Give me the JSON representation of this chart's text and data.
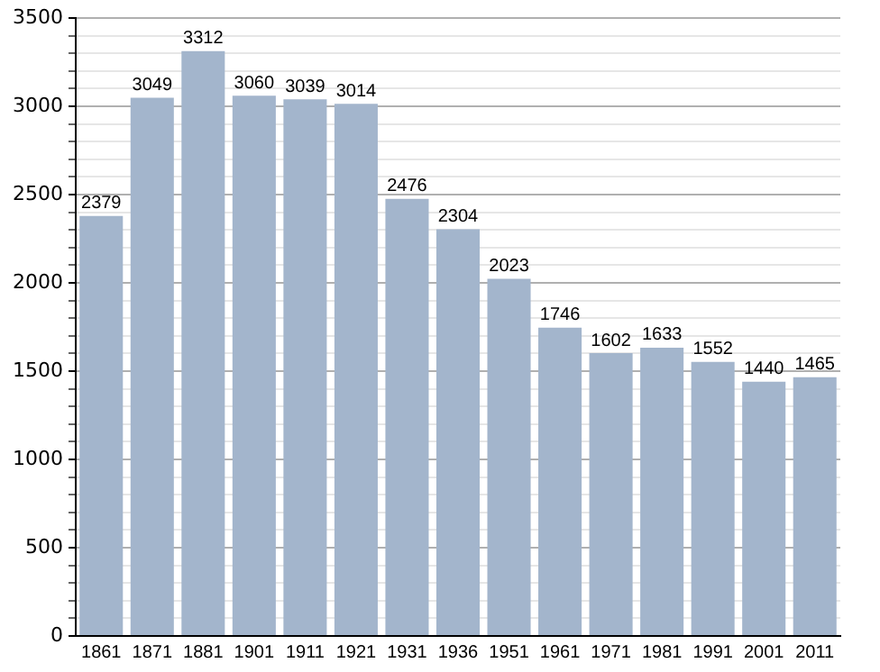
{
  "chart_data": {
    "type": "bar",
    "categories": [
      "1861",
      "1871",
      "1881",
      "1901",
      "1911",
      "1921",
      "1931",
      "1936",
      "1951",
      "1961",
      "1971",
      "1981",
      "1991",
      "2001",
      "2011"
    ],
    "values": [
      2379,
      3049,
      3312,
      3060,
      3039,
      3014,
      2476,
      2304,
      2023,
      1746,
      1602,
      1633,
      1552,
      1440,
      1465
    ],
    "color": "#a3b5cc",
    "ylim": [
      0,
      3500
    ],
    "yticks": [
      0,
      {
        "value": 100,
        "label": null
      },
      {
        "value": 200,
        "label": null
      },
      {
        "value": 300,
        "label": null
      },
      {
        "value": 400,
        "label": null
      },
      500,
      {
        "value": 600,
        "label": null
      },
      {
        "value": 700,
        "label": null
      },
      {
        "value": 800,
        "label": null
      },
      {
        "value": 900,
        "label": null
      },
      1000,
      {
        "value": 1100,
        "label": null
      },
      {
        "value": 1200,
        "label": null
      },
      {
        "value": 1300,
        "label": null
      },
      {
        "value": 1400,
        "label": null
      },
      1500,
      {
        "value": 1600,
        "label": null
      },
      {
        "value": 1700,
        "label": null
      },
      {
        "value": 1800,
        "label": null
      },
      {
        "value": 1900,
        "label": null
      },
      2000,
      {
        "value": 2100,
        "label": null
      },
      {
        "value": 2200,
        "label": null
      },
      {
        "value": 2300,
        "label": null
      },
      {
        "value": 2400,
        "label": null
      },
      2500,
      {
        "value": 2600,
        "label": null
      },
      {
        "value": 2700,
        "label": null
      },
      {
        "value": 2800,
        "label": null
      },
      {
        "value": 2900,
        "label": null
      },
      3000,
      {
        "value": 3100,
        "label": null
      },
      {
        "value": 3200,
        "label": null
      },
      {
        "value": 3300,
        "label": null
      },
      {
        "value": 3400,
        "label": null
      },
      3500
    ],
    "grid": "y",
    "data_labels": true
  }
}
